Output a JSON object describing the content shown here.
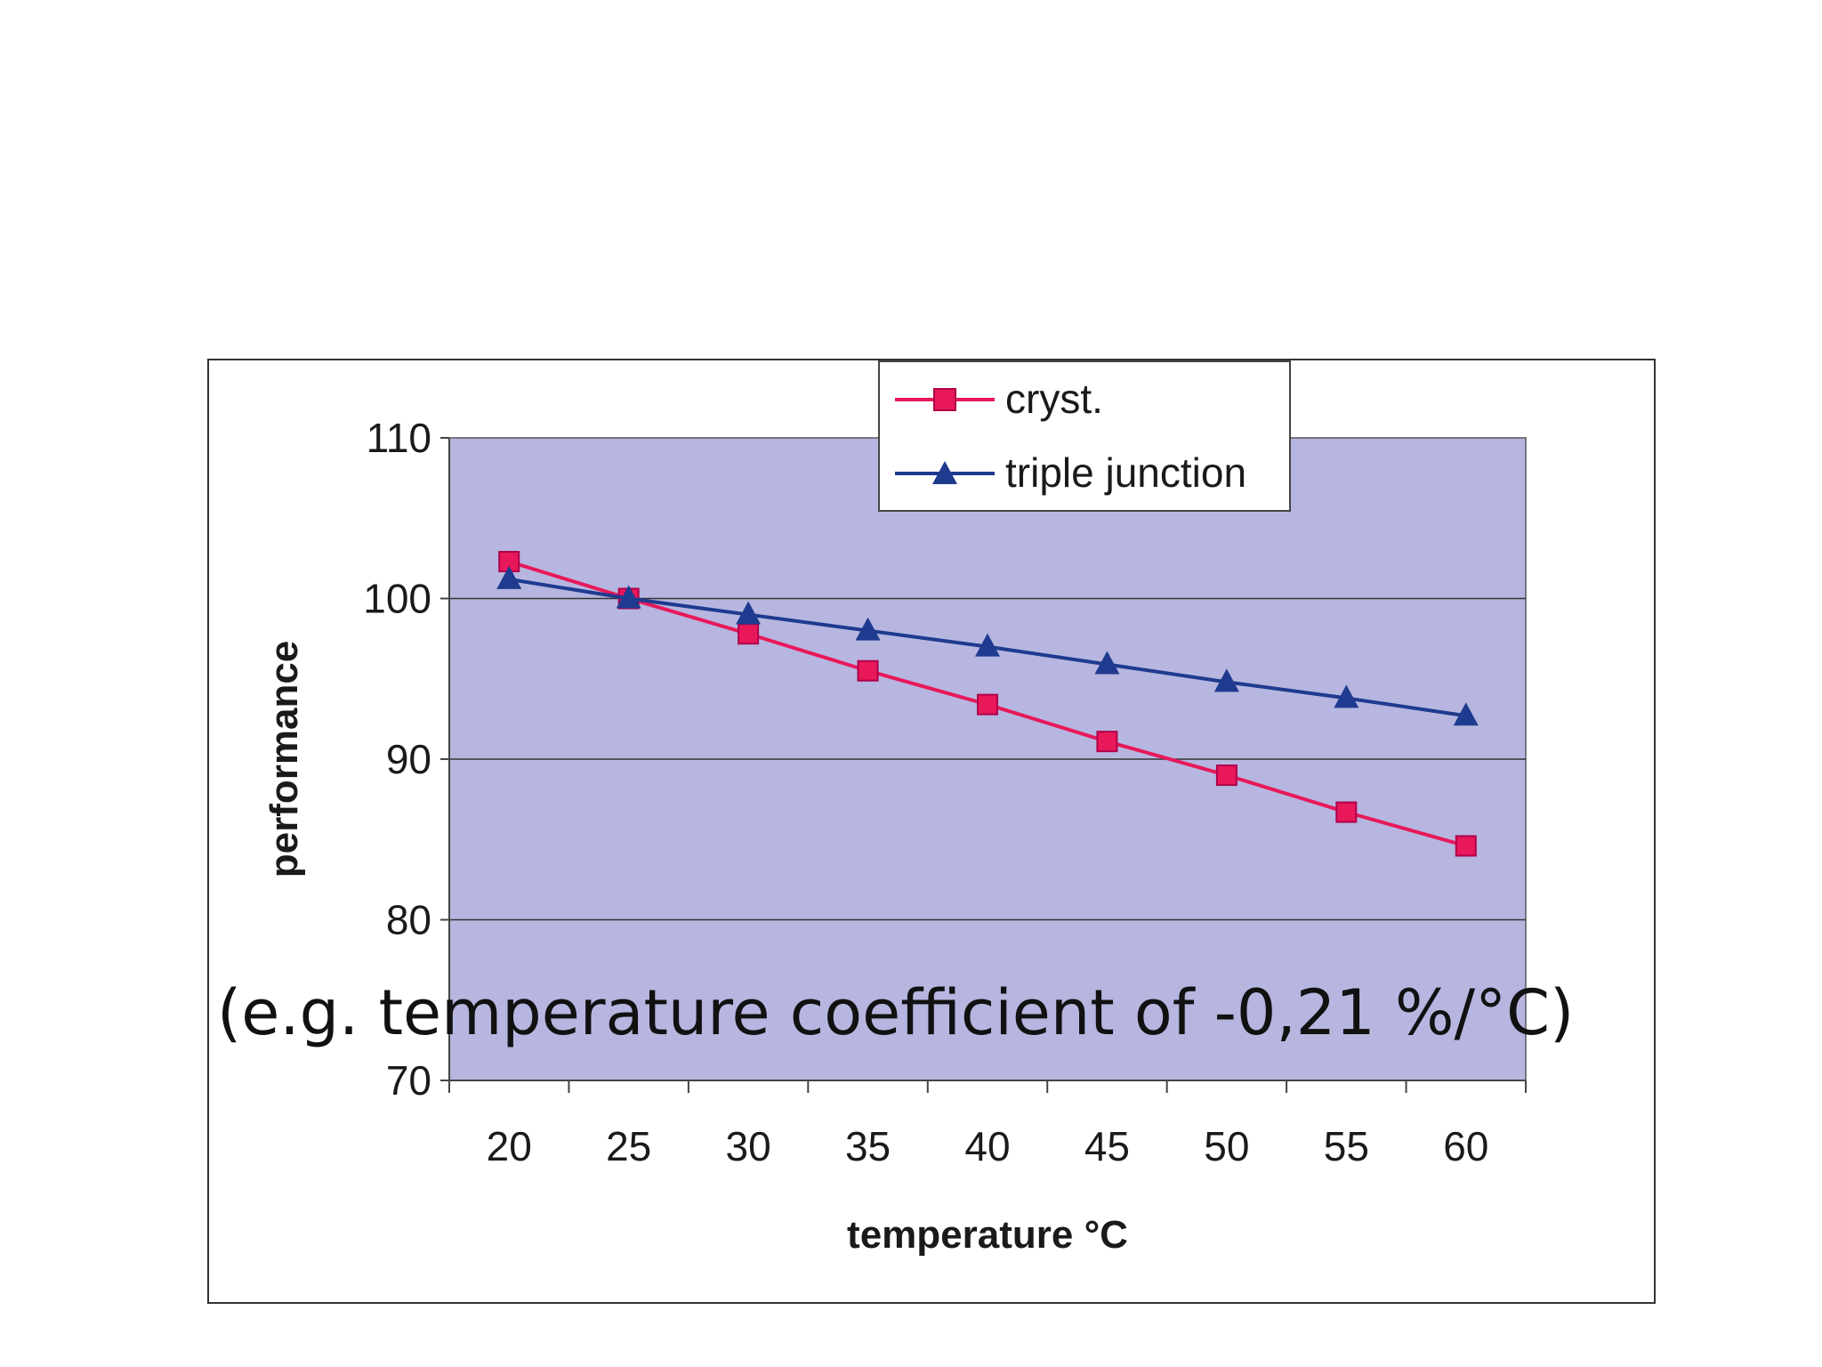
{
  "chart_data": {
    "type": "line",
    "xlabel": "temperature °C",
    "ylabel": "performance",
    "x": [
      20,
      25,
      30,
      35,
      40,
      45,
      50,
      55,
      60
    ],
    "ylim": [
      70,
      110
    ],
    "yticks": [
      70,
      80,
      90,
      100,
      110
    ],
    "grid": true,
    "legend_position": "top-center",
    "plot_background": "#b6b6e0",
    "series": [
      {
        "name": "cryst.",
        "color": "#e8185a",
        "marker": "square",
        "values": [
          102.3,
          100.0,
          97.8,
          95.5,
          93.4,
          91.1,
          89.0,
          86.7,
          84.6
        ]
      },
      {
        "name": "triple junction",
        "color": "#1f3b8f",
        "marker": "triangle",
        "values": [
          101.2,
          100.0,
          99.0,
          98.0,
          97.0,
          95.9,
          94.8,
          93.8,
          92.7
        ]
      }
    ],
    "annotation": "(e.g. temperature coefficient of -0,21 %/°C)"
  }
}
